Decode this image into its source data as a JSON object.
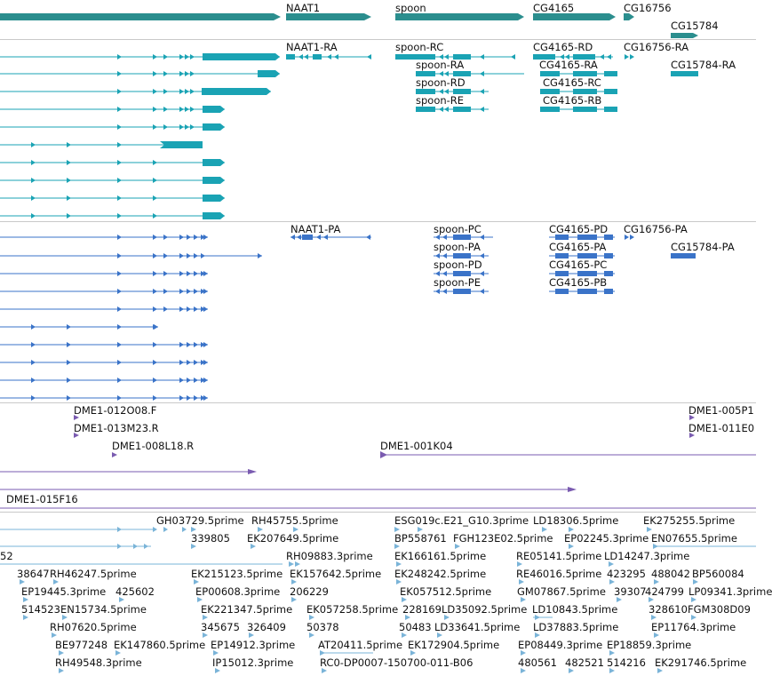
{
  "colors": {
    "gene": "#2b8e8e",
    "transcript_a": "#1aa3b4",
    "transcript_b": "#3a73c8",
    "clone": "#7a5bb0",
    "est": "#7ab4d8",
    "divider": "#c9c9c9"
  },
  "genes": {
    "labels": [
      "NAAT1",
      "spoon",
      "CG4165",
      "CG16756",
      "CG15784"
    ]
  },
  "transcripts_a": {
    "labels": [
      "NAAT1-RA",
      "spoon-RC",
      "spoon-RA",
      "spoon-RD",
      "spoon-RE",
      "CG4165-RD",
      "CG4165-RA",
      "CG4165-RC",
      "CG4165-RB",
      "CG16756-RA",
      "CG15784-RA"
    ]
  },
  "transcripts_b": {
    "labels": [
      "NAAT1-PA",
      "spoon-PC",
      "spoon-PA",
      "spoon-PD",
      "spoon-PE",
      "CG4165-PD",
      "CG4165-PA",
      "CG4165-PC",
      "CG4165-PB",
      "CG16756-PA",
      "CG15784-PA"
    ]
  },
  "clones": {
    "labels": [
      "DME1-012O08.F",
      "DME1-013M23.R",
      "DME1-008L18.R",
      "DME1-001K04",
      "DME1-015F16",
      "DME1-005P1",
      "DME1-011E0"
    ]
  },
  "ests": {
    "labels": [
      "GH03729.5prime",
      "RH45755.5prime",
      "ESG019c.E21_G10.3prime",
      "LD18306.5prime",
      "EK275255.5prime",
      "339805",
      "EK207649.5prime",
      "BP558761",
      "FGH123E02.5prime",
      "EP02245.3prime",
      "EN07655.5prime",
      "52",
      "RH09883.3prime",
      "EK166161.5prime",
      "RE05141.5prime",
      "LD14247.3prime",
      "38647",
      "RH46247.5prime",
      "EK215123.5prime",
      "EK157642.5prime",
      "EK248242.5prime",
      "RE46016.5prime",
      "423295",
      "488042",
      "BP560084",
      "EP19445.3prime",
      "425602",
      "EP00608.3prime",
      "206229",
      "EK057512.5prime",
      "GM07867.5prime",
      "39307",
      "424799",
      "LP09341.3prime",
      "514523",
      "EN15734.5prime",
      "EK221347.5prime",
      "EK057258.5prime",
      "228169",
      "LD35092.5prime",
      "LD10843.5prime",
      "328610",
      "FGM308D09",
      "RH07620.5prime",
      "345675",
      "326409",
      "50378",
      "50483",
      "LD33641.5prime",
      "LD37883.5prime",
      "EP11764.3prime",
      "BE977248",
      "EK147860.5prime",
      "EP14912.3prime",
      "AT20411.5prime",
      "EK172904.5prime",
      "EP08449.3prime",
      "EP18859.3prime",
      "RH49548.3prime",
      "IP15012.3prime",
      "RC0-DP0007-150700-011-B06",
      "480561",
      "482521",
      "514216",
      "EK291746.5prime"
    ]
  }
}
